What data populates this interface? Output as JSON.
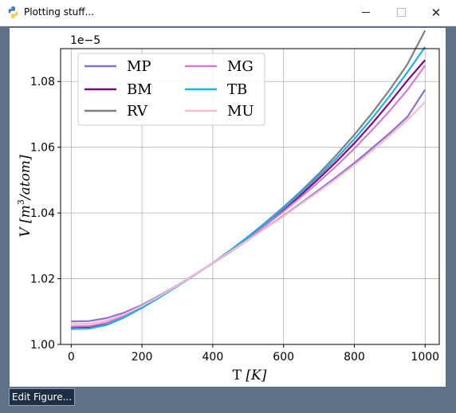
{
  "window": {
    "title": "Plotting stuff...",
    "close_glyph": "✕",
    "icons": {
      "app": "python-icon",
      "minimize": "minimize-icon",
      "maximize": "maximize-icon",
      "close": "close-icon"
    }
  },
  "toolbar": {
    "edit_label": "Edit Figure..."
  },
  "chart_data": {
    "type": "line",
    "title": "",
    "xlabel_main": "T ",
    "xlabel_unit": "[K]",
    "ylabel_main": "V ",
    "ylabel_unit_pre": "[m",
    "ylabel_unit_sup": "3",
    "ylabel_unit_post": "/atom]",
    "offset_text": "1e−5",
    "xlim": [
      -30,
      1040
    ],
    "ylim": [
      1.0,
      1.09
    ],
    "xticks": [
      0,
      200,
      400,
      600,
      800,
      1000
    ],
    "yticks": [
      1.0,
      1.02,
      1.04,
      1.06,
      1.08
    ],
    "xtick_labels": [
      "0",
      "200",
      "400",
      "600",
      "800",
      "1000"
    ],
    "ytick_labels": [
      "1.00",
      "1.02",
      "1.04",
      "1.06",
      "1.08"
    ],
    "grid": true,
    "legend_position": "top-left",
    "legend_columns": 2,
    "x": [
      0,
      50,
      100,
      150,
      200,
      250,
      300,
      350,
      400,
      450,
      500,
      550,
      600,
      650,
      700,
      750,
      800,
      850,
      900,
      950,
      1000
    ],
    "series": [
      {
        "name": "MP",
        "color": "#8a70cf",
        "values": [
          1.007,
          1.0071,
          1.008,
          1.0097,
          1.012,
          1.0149,
          1.018,
          1.0213,
          1.0247,
          1.0282,
          1.0318,
          1.0355,
          1.0392,
          1.043,
          1.047,
          1.051,
          1.0552,
          1.0597,
          1.0643,
          1.0692,
          1.0775
        ]
      },
      {
        "name": "BM",
        "color": "#7b0a7d",
        "values": [
          1.005,
          1.0051,
          1.0062,
          1.0085,
          1.0113,
          1.0145,
          1.0178,
          1.0213,
          1.0248,
          1.0286,
          1.0325,
          1.0367,
          1.041,
          1.0456,
          1.0505,
          1.0557,
          1.0612,
          1.0672,
          1.0736,
          1.0803,
          1.0865
        ]
      },
      {
        "name": "RV",
        "color": "#7f7f7f",
        "values": [
          1.0048,
          1.0049,
          1.006,
          1.0083,
          1.0112,
          1.0144,
          1.0177,
          1.0212,
          1.0248,
          1.0287,
          1.0328,
          1.0372,
          1.0418,
          1.0467,
          1.052,
          1.0577,
          1.0638,
          1.0704,
          1.0775,
          1.0852,
          1.0955
        ]
      },
      {
        "name": "MG",
        "color": "#d67ad4",
        "values": [
          1.0055,
          1.0056,
          1.0066,
          1.0088,
          1.0115,
          1.0146,
          1.0179,
          1.0213,
          1.0248,
          1.0285,
          1.0323,
          1.0363,
          1.0405,
          1.0449,
          1.0495,
          1.0544,
          1.0596,
          1.0652,
          1.0711,
          1.0774,
          1.0848
        ]
      },
      {
        "name": "TB",
        "color": "#1ab1e8",
        "values": [
          1.0047,
          1.0048,
          1.0059,
          1.0082,
          1.0111,
          1.0143,
          1.0177,
          1.0212,
          1.0248,
          1.0286,
          1.0326,
          1.0369,
          1.0414,
          1.0462,
          1.0513,
          1.0567,
          1.0625,
          1.0688,
          1.0756,
          1.0828,
          1.0905
        ]
      },
      {
        "name": "MU",
        "color": "#f5bcd0",
        "values": [
          1.0062,
          1.0063,
          1.0072,
          1.0092,
          1.0117,
          1.0147,
          1.0179,
          1.0213,
          1.0248,
          1.0283,
          1.0318,
          1.0354,
          1.039,
          1.0428,
          1.0466,
          1.0505,
          1.0546,
          1.0589,
          1.0635,
          1.0683,
          1.0738
        ]
      }
    ]
  }
}
